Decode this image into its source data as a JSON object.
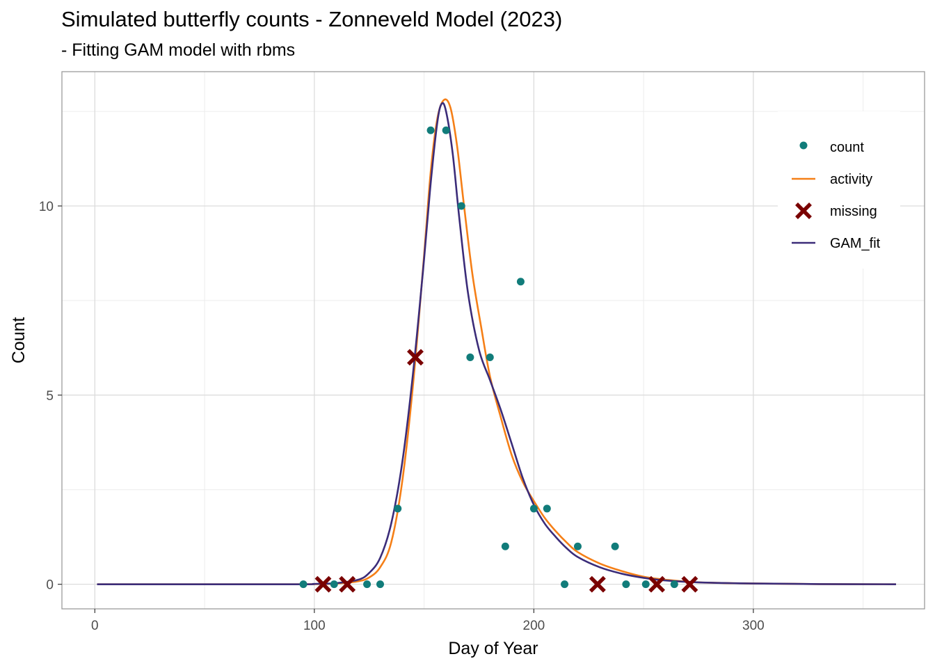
{
  "chart_data": {
    "type": "scatter",
    "title": "Simulated butterfly counts - Zonneveld Model (2023)",
    "subtitle": "- Fitting GAM model with rbms",
    "xlabel": "Day of Year",
    "ylabel": "Count",
    "xlim": [
      -15,
      378
    ],
    "ylim": [
      -0.65,
      13.55
    ],
    "x_ticks": [
      0,
      100,
      200,
      300
    ],
    "y_ticks": [
      0,
      5,
      10
    ],
    "grid": true,
    "legend_position": "top-right",
    "colors": {
      "count": "#117c7a",
      "activity": "#f57f17",
      "missing": "#7a0000",
      "GAM_fit": "#3b2c79",
      "grid_major": "#dcdcdc",
      "grid_minor": "#ececec",
      "panel_border": "#9b9b9b"
    },
    "series": [
      {
        "name": "count",
        "kind": "points",
        "x": [
          95,
          109,
          124,
          130,
          138,
          153,
          160,
          167,
          171,
          180,
          187,
          194,
          200,
          206,
          214,
          220,
          237,
          242,
          251,
          264
        ],
        "y": [
          0,
          0,
          0,
          0,
          2,
          12,
          12,
          10,
          6,
          6,
          1,
          8,
          2,
          2,
          0,
          1,
          1,
          0,
          0,
          0
        ]
      },
      {
        "name": "missing",
        "kind": "crosses",
        "x": [
          104,
          115,
          146,
          229,
          256,
          271
        ],
        "y": [
          0,
          0,
          6,
          0,
          0,
          0
        ]
      },
      {
        "name": "activity",
        "kind": "line",
        "x": [
          1,
          90,
          110,
          120,
          125,
          130,
          135,
          140,
          145,
          150,
          153,
          156,
          159,
          162,
          165,
          168,
          172,
          176,
          180,
          185,
          190,
          195,
          200,
          205,
          210,
          215,
          220,
          230,
          240,
          250,
          260,
          275,
          300,
          330,
          365
        ],
        "y": [
          0,
          0,
          0.02,
          0.08,
          0.18,
          0.45,
          1.1,
          2.7,
          5.3,
          8.7,
          10.9,
          12.3,
          12.8,
          12.6,
          11.6,
          10.1,
          8.2,
          6.8,
          5.5,
          4.4,
          3.4,
          2.7,
          2.2,
          1.75,
          1.4,
          1.1,
          0.85,
          0.55,
          0.35,
          0.2,
          0.12,
          0.05,
          0.02,
          0.005,
          0
        ]
      },
      {
        "name": "GAM_fit",
        "kind": "line",
        "x": [
          1,
          90,
          100,
          110,
          120,
          125,
          130,
          135,
          140,
          145,
          150,
          153,
          156,
          158,
          160,
          163,
          166,
          170,
          175,
          180,
          185,
          190,
          195,
          200,
          205,
          210,
          215,
          220,
          230,
          240,
          250,
          260,
          275,
          300,
          330,
          365
        ],
        "y": [
          0,
          0,
          0.01,
          0.03,
          0.12,
          0.3,
          0.7,
          1.6,
          3.2,
          5.6,
          8.6,
          10.6,
          12.2,
          12.7,
          12.5,
          11.4,
          9.7,
          7.7,
          6.2,
          5.4,
          4.6,
          3.7,
          2.8,
          2.1,
          1.6,
          1.25,
          0.95,
          0.72,
          0.45,
          0.28,
          0.17,
          0.1,
          0.05,
          0.02,
          0.005,
          0
        ]
      }
    ],
    "legend": [
      "count",
      "activity",
      "missing",
      "GAM_fit"
    ]
  }
}
